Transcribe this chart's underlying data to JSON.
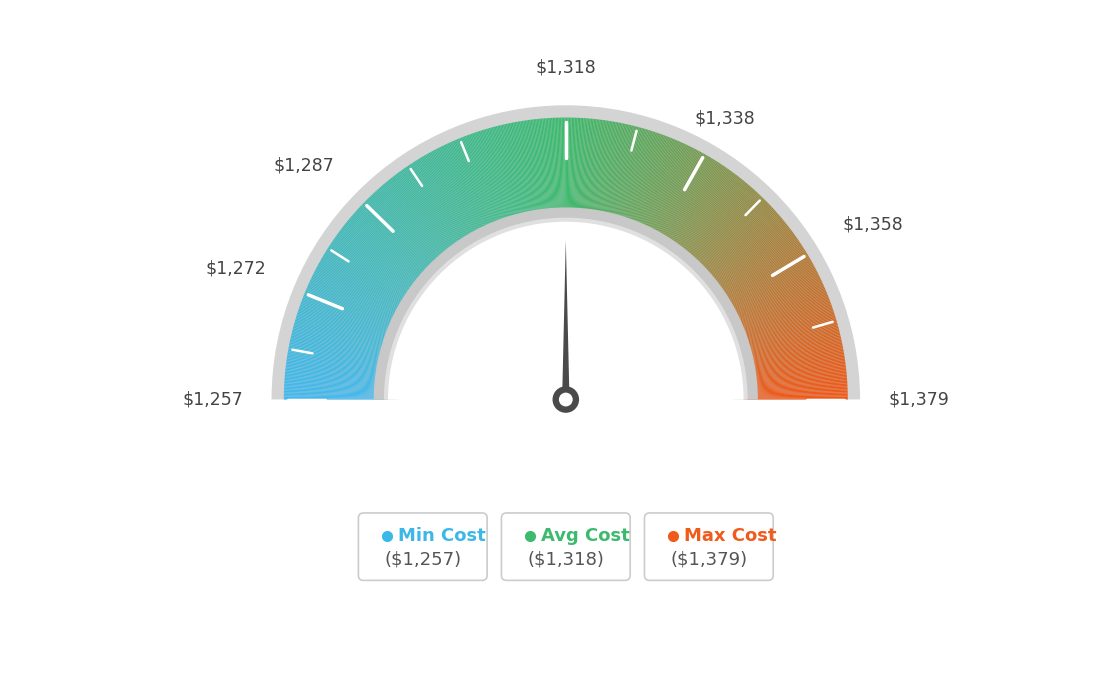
{
  "min_val": 1257,
  "max_val": 1379,
  "avg_val": 1318,
  "tick_labels": [
    "$1,257",
    "$1,272",
    "$1,287",
    "$1,318",
    "$1,338",
    "$1,358",
    "$1,379"
  ],
  "tick_values": [
    1257,
    1272,
    1287,
    1318,
    1338,
    1358,
    1379
  ],
  "all_tick_values": [
    1257,
    1264,
    1272,
    1279,
    1287,
    1295,
    1303,
    1318,
    1328,
    1338,
    1348,
    1358,
    1368,
    1379
  ],
  "legend_items": [
    {
      "label": "Min Cost",
      "value": "($1,257)",
      "color": "#3cb8e8"
    },
    {
      "label": "Avg Cost",
      "value": "($1,318)",
      "color": "#3dba6e"
    },
    {
      "label": "Max Cost",
      "value": "($1,379)",
      "color": "#f05a1a"
    }
  ],
  "background_color": "#ffffff",
  "color_blue": [
    0.27,
    0.72,
    0.93
  ],
  "color_green": [
    0.24,
    0.73,
    0.43
  ],
  "color_orange": [
    0.94,
    0.35,
    0.1
  ]
}
